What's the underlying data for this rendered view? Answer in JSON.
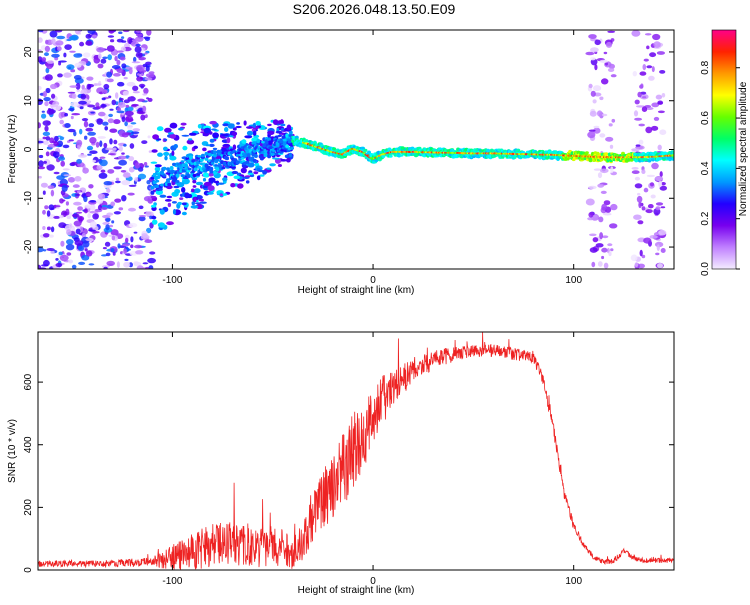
{
  "figure_title": "S206.2026.048.13.50.E09",
  "chart_data": [
    {
      "type": "heatmap",
      "title": "S206.2026.048.13.50.E09",
      "xlabel": "Height of straight line (km)",
      "ylabel": "Frequency (Hz)",
      "xlim": [
        -167,
        150
      ],
      "ylim": [
        -24.5,
        24.5
      ],
      "xticks": [
        -100,
        0,
        100
      ],
      "xtick_labels": [
        "-100",
        "0",
        "100"
      ],
      "yticks": [
        -20,
        -10,
        0,
        10,
        20
      ],
      "ytick_labels": [
        "-20",
        "-10",
        "0",
        "10",
        "20"
      ],
      "colorbar": {
        "label": "Normalized spectral amplitude",
        "range": [
          0,
          0.95
        ],
        "ticks": [
          0.0,
          0.2,
          0.4,
          0.6,
          0.8
        ],
        "tick_labels": [
          "0.0",
          "0.2",
          "0.4",
          "0.6",
          "0.8"
        ],
        "colors": [
          "#f4ecff",
          "#c080ff",
          "#7700ee",
          "#2200ff",
          "#0099ff",
          "#00ffff",
          "#00ff66",
          "#66ff00",
          "#ffff00",
          "#ff9900",
          "#ff2200",
          "#ff0088"
        ]
      },
      "ridge": {
        "x": [
          -110,
          -100,
          -90,
          -80,
          -70,
          -60,
          -50,
          -40,
          -35,
          -30,
          -20,
          -15,
          -10,
          -5,
          0,
          5,
          10,
          20,
          30,
          40,
          50,
          60,
          70,
          80,
          90,
          100,
          110,
          120,
          130,
          140,
          150
        ],
        "freq": [
          -7,
          -5,
          -3.5,
          -2.5,
          -1.5,
          -0.5,
          0.8,
          1.8,
          1.5,
          0.8,
          -0.5,
          -1,
          0.2,
          -0.5,
          -2,
          -1,
          -0.5,
          -0.5,
          -0.6,
          -0.7,
          -0.8,
          -0.8,
          -0.9,
          -1,
          -1.1,
          -1.3,
          -1.5,
          -1.6,
          -1.6,
          -1.5,
          -1.2
        ]
      },
      "noise_bands": [
        {
          "x_from": -167,
          "x_to": -110,
          "intensity": 0.3
        },
        {
          "x_from": 108,
          "x_to": 120,
          "intensity": 0.18
        },
        {
          "x_from": 130,
          "x_to": 145,
          "intensity": 0.18
        }
      ]
    },
    {
      "type": "line",
      "title": "",
      "xlabel": "Height of straight line (km)",
      "ylabel": "SNR (10 * v/v)",
      "xlim": [
        -167,
        150
      ],
      "ylim": [
        0,
        760
      ],
      "xticks": [
        -100,
        0,
        100
      ],
      "xtick_labels": [
        "-100",
        "0",
        "100"
      ],
      "yticks": [
        0,
        200,
        400,
        600
      ],
      "ytick_labels": [
        "0",
        "200",
        "400",
        "600"
      ],
      "color": "#ee2222",
      "series": [
        {
          "name": "SNR",
          "x": [
            -167,
            -140,
            -110,
            -100,
            -90,
            -80,
            -70,
            -60,
            -50,
            -45,
            -40,
            -35,
            -30,
            -25,
            -20,
            -15,
            -10,
            -5,
            0,
            5,
            10,
            20,
            30,
            40,
            50,
            60,
            70,
            80,
            85,
            90,
            95,
            100,
            105,
            110,
            115,
            120,
            125,
            130,
            135,
            140,
            150
          ],
          "y": [
            20,
            20,
            25,
            40,
            60,
            80,
            85,
            75,
            80,
            70,
            50,
            90,
            180,
            220,
            260,
            320,
            380,
            430,
            480,
            540,
            580,
            640,
            670,
            690,
            700,
            700,
            690,
            680,
            600,
            450,
            250,
            140,
            80,
            40,
            25,
            30,
            60,
            40,
            30,
            30,
            30
          ],
          "noise": [
            10,
            10,
            15,
            40,
            60,
            70,
            75,
            70,
            70,
            60,
            50,
            60,
            90,
            100,
            110,
            120,
            120,
            110,
            100,
            80,
            60,
            40,
            30,
            25,
            20,
            20,
            20,
            20,
            20,
            20,
            20,
            15,
            10,
            8,
            8,
            8,
            10,
            8,
            8,
            8,
            8
          ]
        }
      ]
    }
  ]
}
